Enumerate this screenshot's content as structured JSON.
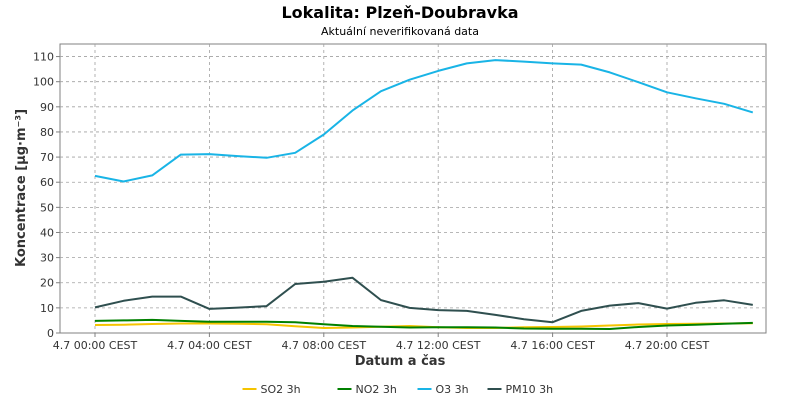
{
  "chart_data": {
    "type": "line",
    "title": "Lokalita: Plzeň-Doubravka",
    "subtitle": "Aktuální neverifikovaná data",
    "xlabel": "Datum a čas",
    "ylabel": "Koncentrace [µg·m⁻³]",
    "ylim": [
      0,
      115
    ],
    "y_ticks": [
      0,
      10,
      20,
      30,
      40,
      50,
      60,
      70,
      80,
      90,
      100,
      110
    ],
    "x_ticks": [
      "4.7 00:00 CEST",
      "4.7 04:00 CEST",
      "4.7 08:00 CEST",
      "4.7 12:00 CEST",
      "4.7 16:00 CEST",
      "4.7 20:00 CEST"
    ],
    "x_tick_hours": [
      0,
      4,
      8,
      12,
      16,
      20
    ],
    "x_hours": [
      0,
      1,
      2,
      3,
      4,
      5,
      6,
      7,
      8,
      9,
      10,
      11,
      12,
      13,
      14,
      15,
      16,
      17,
      18,
      19,
      20,
      21,
      22,
      23
    ],
    "grid": true,
    "legend_position": "bottom",
    "series": [
      {
        "name": "SO2 3h",
        "color": "#f5c400",
        "values": [
          3.2,
          3.3,
          3.6,
          3.8,
          3.8,
          3.7,
          3.5,
          2.7,
          2.0,
          2.2,
          2.5,
          2.8,
          2.3,
          2.0,
          2.0,
          2.3,
          2.4,
          2.6,
          3.0,
          3.4,
          3.6,
          3.7,
          3.8,
          3.9
        ]
      },
      {
        "name": "NO2 3h",
        "color": "#008000",
        "values": [
          4.8,
          5.0,
          5.2,
          4.8,
          4.5,
          4.5,
          4.5,
          4.3,
          3.5,
          2.8,
          2.5,
          2.2,
          2.3,
          2.3,
          2.2,
          1.8,
          1.7,
          1.7,
          1.6,
          2.4,
          3.0,
          3.3,
          3.7,
          4.0
        ]
      },
      {
        "name": "O3 3h",
        "color": "#19b4e6",
        "values": [
          62.5,
          60.3,
          62.7,
          71.0,
          71.2,
          70.4,
          69.7,
          71.7,
          79.0,
          88.5,
          96.2,
          100.8,
          104.3,
          107.3,
          108.6,
          108.0,
          107.3,
          106.8,
          103.7,
          99.8,
          95.8,
          93.4,
          91.2,
          87.8
        ]
      },
      {
        "name": "PM10 3h",
        "color": "#2f4f4f",
        "values": [
          10.2,
          12.8,
          14.5,
          14.5,
          9.6,
          10.1,
          10.7,
          19.5,
          20.4,
          22.0,
          13.1,
          10.0,
          9.1,
          8.8,
          7.2,
          5.5,
          4.3,
          8.8,
          10.9,
          11.9,
          9.7,
          12.0,
          13.0,
          11.2
        ]
      }
    ]
  }
}
